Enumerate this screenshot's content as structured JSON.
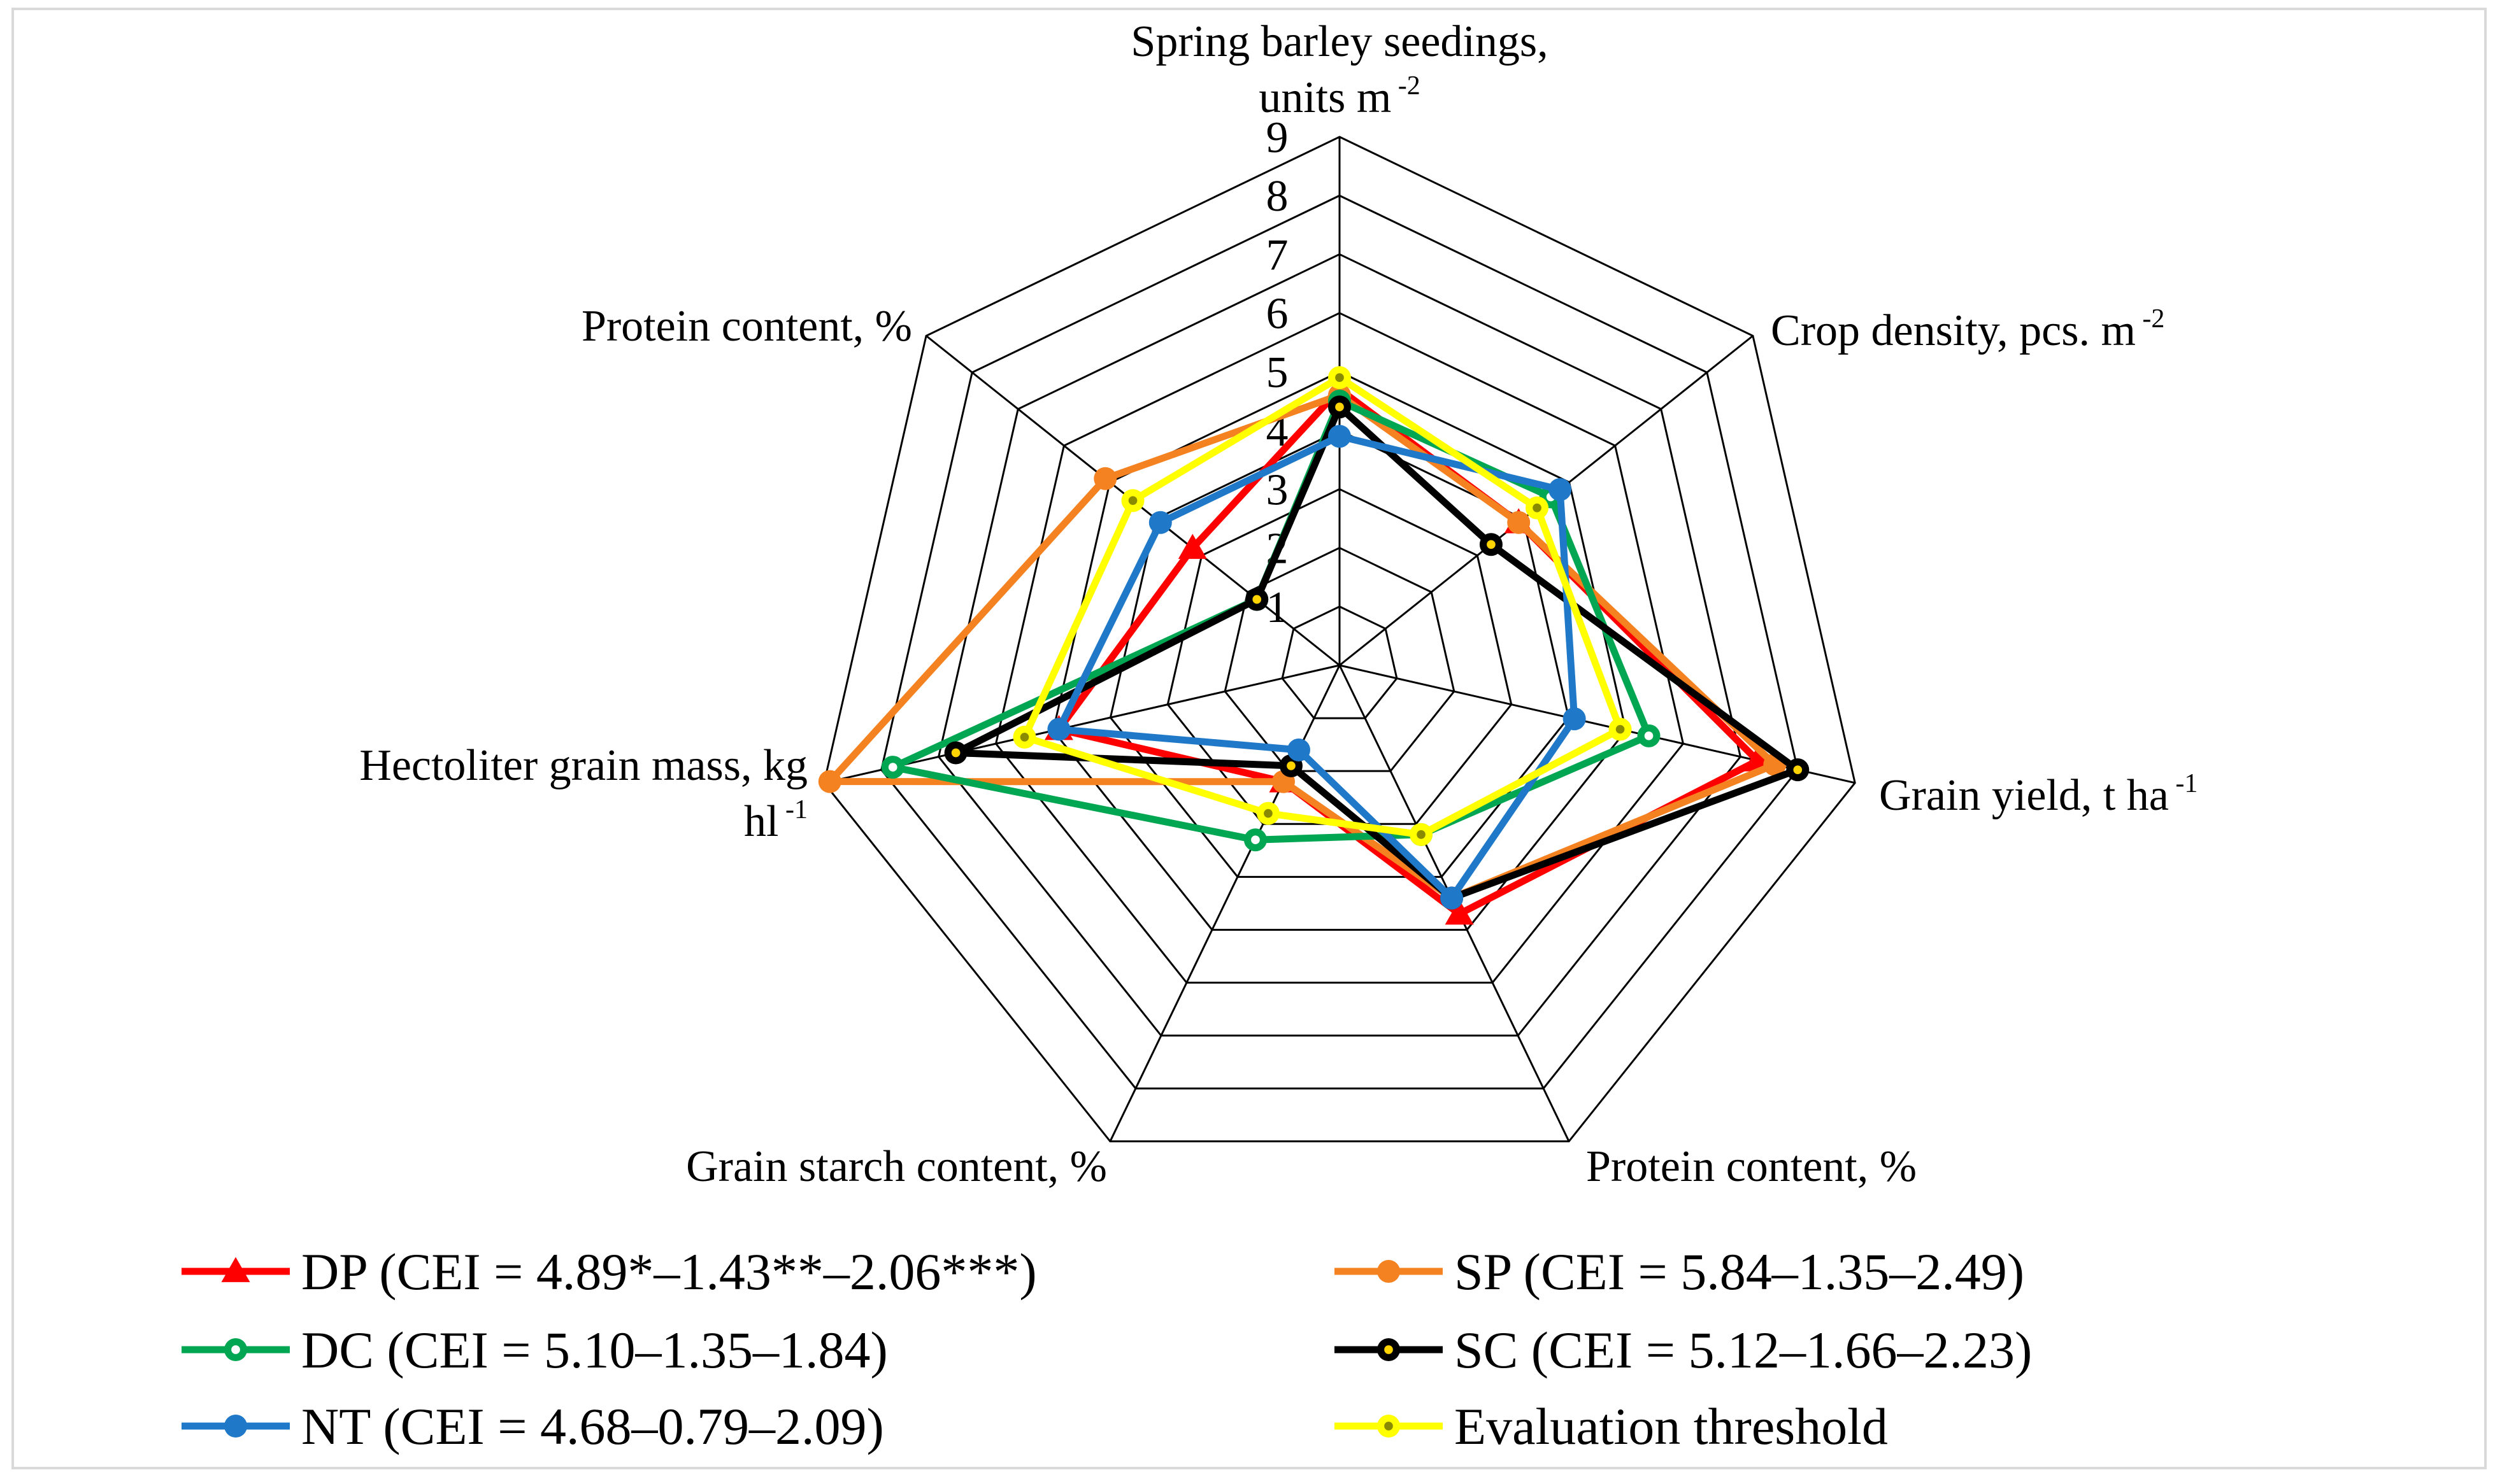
{
  "chart_data": {
    "type": "radar",
    "axes": [
      {
        "label_lines": [
          "Spring barley seedings,",
          "units m"
        ],
        "sup": "-2"
      },
      {
        "label_lines": [
          "Crop density, pcs. m"
        ],
        "sup": "-2"
      },
      {
        "label_lines": [
          "Grain yield, t ha"
        ],
        "sup": "-1"
      },
      {
        "label_lines": [
          "Protein content, %"
        ],
        "sup": ""
      },
      {
        "label_lines": [
          "Grain starch content, %"
        ],
        "sup": ""
      },
      {
        "label_lines": [
          "Hectoliter grain mass, kg",
          "hl"
        ],
        "sup": "-1"
      },
      {
        "label_lines": [
          "Protein content, %"
        ],
        "sup": ""
      }
    ],
    "rlim": [
      0,
      9
    ],
    "ticks": [
      1,
      2,
      3,
      4,
      5,
      6,
      7,
      8,
      9
    ],
    "grid": true,
    "legend_position": "bottom",
    "series": [
      {
        "name": "DP (CEI = 4.89*–1.43**–2.06***)",
        "color": "#ff0000",
        "marker": "triangle",
        "values": [
          4.7,
          3.9,
          7.3,
          4.7,
          2.2,
          4.9,
          3.2
        ]
      },
      {
        "name": "SP (CEI = 5.84–1.35–2.49)",
        "color": "#f58220",
        "marker": "circle",
        "values": [
          4.6,
          3.9,
          7.6,
          4.4,
          2.2,
          8.9,
          5.1
        ]
      },
      {
        "name": "DC (CEI = 5.10–1.35–1.84)",
        "color": "#00a651",
        "marker": "ring",
        "values": [
          4.5,
          4.6,
          5.4,
          3.2,
          3.3,
          7.8,
          1.8
        ]
      },
      {
        "name": "SC (CEI = 5.12–1.66–2.23)",
        "color": "#000000",
        "marker": "ring",
        "values": [
          4.4,
          3.3,
          8.0,
          4.4,
          1.9,
          6.7,
          1.8
        ]
      },
      {
        "name": "NT (CEI = 4.68–0.79–2.09)",
        "color": "#1f78c8",
        "marker": "circle",
        "values": [
          3.9,
          4.8,
          4.1,
          4.4,
          1.6,
          4.9,
          3.9
        ]
      },
      {
        "name": "Evaluation threshold",
        "color": "#ffff00",
        "marker": "ring",
        "values": [
          4.9,
          4.3,
          4.9,
          3.2,
          2.8,
          5.5,
          4.5
        ]
      }
    ]
  }
}
